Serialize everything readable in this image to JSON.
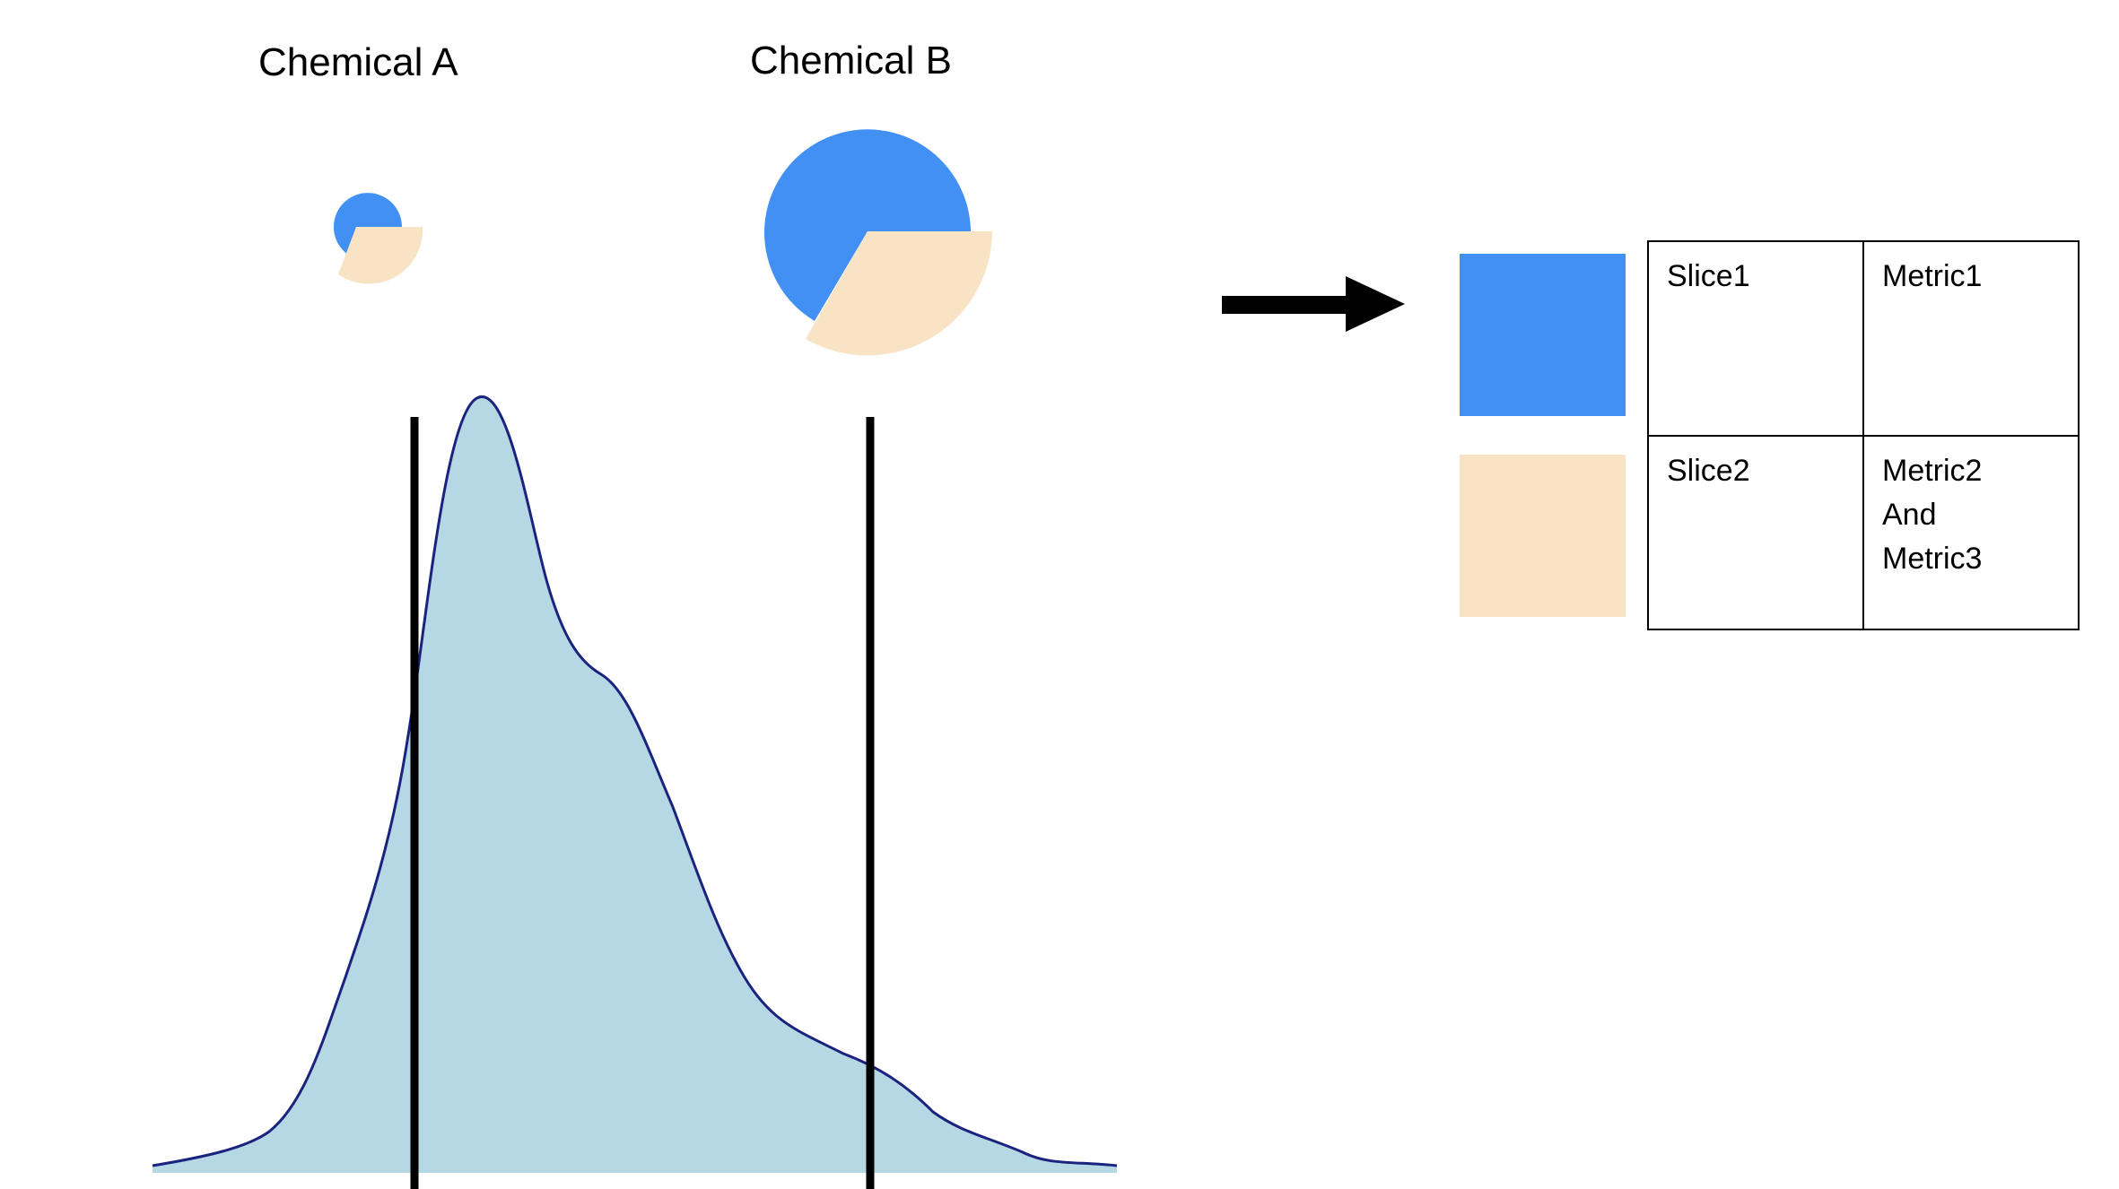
{
  "chemicals": [
    {
      "label": "Chemical A",
      "pie": {
        "slice1_fraction": 0.58,
        "slice2_fraction": 0.42
      }
    },
    {
      "label": "Chemical B",
      "pie": {
        "slice1_fraction": 0.58,
        "slice2_fraction": 0.42
      }
    }
  ],
  "colors": {
    "slice1": "#4390F5",
    "slice2": "#F9E3C5",
    "density_fill": "#B6D7E4",
    "density_line": "#1A237E",
    "marker_line": "#000000"
  },
  "legend": {
    "rows": [
      {
        "slice": "Slice1",
        "metric": "Metric1"
      },
      {
        "slice": "Slice2",
        "metric": "Metric2\nAnd\nMetric3"
      }
    ]
  }
}
